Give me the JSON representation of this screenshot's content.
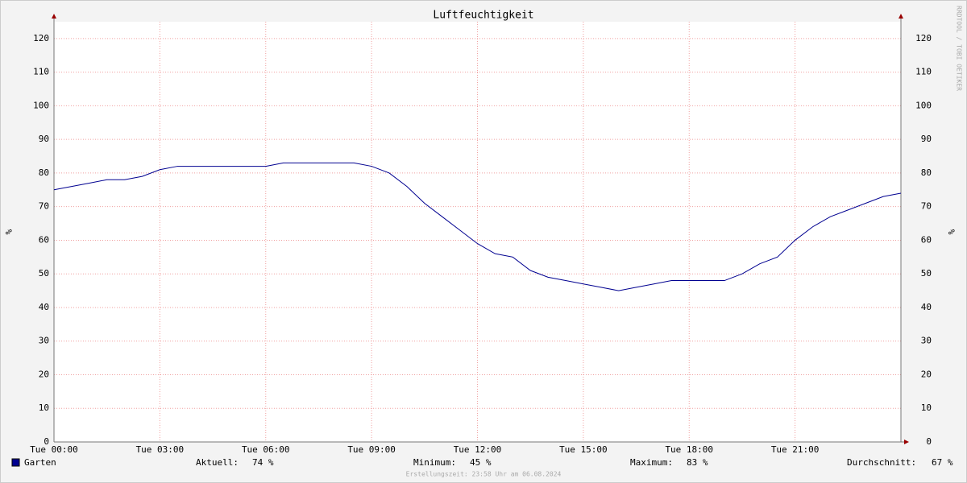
{
  "chart_data": {
    "type": "line",
    "title": "Luftfeuchtigkeit",
    "y_label": "%",
    "watermark": "RRDTOOL / TOBI OETIKER",
    "x": [
      0,
      0.5,
      1,
      1.5,
      2,
      2.5,
      3,
      3.5,
      4,
      4.5,
      5,
      5.5,
      6,
      6.5,
      7,
      7.5,
      8,
      8.5,
      9,
      9.5,
      10,
      10.5,
      11,
      11.5,
      12,
      12.5,
      13,
      13.5,
      14,
      14.5,
      15,
      15.5,
      16,
      16.5,
      17,
      17.5,
      18,
      18.5,
      19,
      19.5,
      20,
      20.5,
      21,
      21.5,
      22,
      22.5,
      23,
      23.5,
      24
    ],
    "series": [
      {
        "name": "Garten",
        "color": "#000090",
        "values": [
          75,
          76,
          77,
          78,
          78,
          79,
          81,
          82,
          82,
          82,
          82,
          82,
          82,
          83,
          83,
          83,
          83,
          83,
          82,
          80,
          76,
          71,
          67,
          63,
          59,
          56,
          55,
          51,
          49,
          48,
          47,
          46,
          45,
          46,
          47,
          48,
          48,
          48,
          48,
          50,
          53,
          55,
          60,
          64,
          67,
          69,
          71,
          73,
          74
        ]
      }
    ],
    "xlim": [
      0,
      24
    ],
    "ylim": [
      0,
      125
    ],
    "xticks": [
      {
        "value": 0,
        "label": "Tue 00:00"
      },
      {
        "value": 3,
        "label": "Tue 03:00"
      },
      {
        "value": 6,
        "label": "Tue 06:00"
      },
      {
        "value": 9,
        "label": "Tue 09:00"
      },
      {
        "value": 12,
        "label": "Tue 12:00"
      },
      {
        "value": 15,
        "label": "Tue 15:00"
      },
      {
        "value": 18,
        "label": "Tue 18:00"
      },
      {
        "value": 21,
        "label": "Tue 21:00"
      }
    ],
    "yticks": [
      0,
      10,
      20,
      30,
      40,
      50,
      60,
      70,
      80,
      90,
      100,
      110,
      120
    ],
    "grid": true,
    "stats": [
      {
        "label": "Aktuell:",
        "value": "74 %"
      },
      {
        "label": "Minimum:",
        "value": "45 %"
      },
      {
        "label": "Maximum:",
        "value": "83 %"
      },
      {
        "label": "Durchschnitt:",
        "value": "67 %"
      }
    ],
    "footer": "Erstellungszeit: 23:58 Uhr am 06.08.2024"
  }
}
